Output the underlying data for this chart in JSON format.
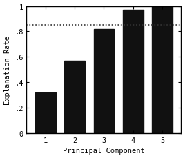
{
  "categories": [
    1,
    2,
    3,
    4,
    5
  ],
  "values": [
    0.32,
    0.57,
    0.82,
    0.97,
    1.0
  ],
  "bar_color": "#111111",
  "hline_y": 0.85,
  "hline_style": ":",
  "hline_color": "#333333",
  "hline_linewidth": 1.2,
  "title": "",
  "xlabel": "Principal Component",
  "ylabel": "Explanation Rate",
  "ylim": [
    0,
    1.0
  ],
  "ytick_vals": [
    0,
    0.2,
    0.4,
    0.6,
    0.8,
    1.0
  ],
  "ytick_labels": [
    "0",
    ".2",
    ".4",
    ".6",
    ".8",
    "1"
  ],
  "xticks": [
    1,
    2,
    3,
    4,
    5
  ],
  "bar_width": 0.7,
  "background_color": "#ffffff",
  "xlabel_fontsize": 7.5,
  "ylabel_fontsize": 7.5,
  "tick_fontsize": 7.5,
  "edge_color": "#000000"
}
